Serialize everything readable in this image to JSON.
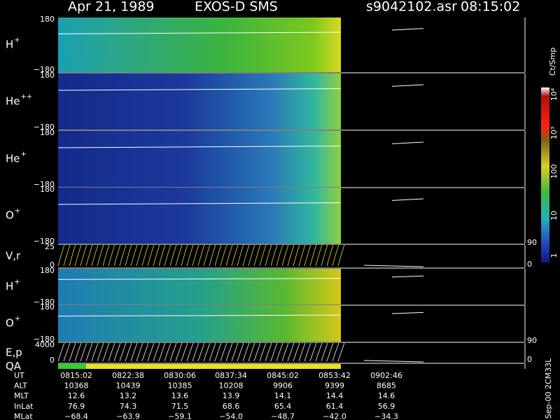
{
  "header": {
    "date": "Apr 21, 1989",
    "instrument": "EXOS-D SMS",
    "file": "s9042102.asr",
    "time": "08:15:02"
  },
  "panels": [
    {
      "label": "H",
      "charge": "+",
      "top": "180",
      "bottom": "−180"
    },
    {
      "label": "He",
      "charge": "++",
      "top": "180",
      "bottom": "−180"
    },
    {
      "label": "He",
      "charge": "+",
      "top": "180",
      "bottom": "−180"
    },
    {
      "label": "O",
      "charge": "+",
      "top": "180",
      "bottom": "−180"
    },
    {
      "label": "V,r",
      "top": "25",
      "bottom": "0",
      "right_top": "90",
      "right_bottom": "0"
    },
    {
      "label": "H",
      "charge": "+",
      "top": "180",
      "bottom": "−180"
    },
    {
      "label": "O",
      "charge": "+",
      "top": "180",
      "bottom": "−180"
    },
    {
      "label": "E,p",
      "top": "4000",
      "bottom": "0",
      "right_top": "90",
      "right_bottom": "0"
    },
    {
      "label": "QA"
    }
  ],
  "colorbar": {
    "title": "Ct/Smp",
    "ticks": [
      "10⁴",
      "10³",
      "100",
      "10",
      "1"
    ]
  },
  "table": {
    "rows": [
      [
        "UT",
        "0815:02",
        "0822:38",
        "0830:06",
        "0837:34",
        "0845:02",
        "0853:42",
        "0902:46"
      ],
      [
        "ALT",
        "10368",
        "10439",
        "10385",
        "10208",
        "9906",
        "9399",
        "8685"
      ],
      [
        "MLT",
        "12.6",
        "13.2",
        "13.6",
        "13.9",
        "14.1",
        "14.4",
        "14.6"
      ],
      [
        "InLat",
        "76.9",
        "74.3",
        "71.5",
        "68.6",
        "65.4",
        "61.4",
        "56.9"
      ],
      [
        "MLat",
        "−68.4",
        "−63.9",
        "−59.1",
        "−54.0",
        "−48.7",
        "−42.0",
        "−34.3"
      ]
    ]
  },
  "footer": "Sep-00 2CM33L"
}
